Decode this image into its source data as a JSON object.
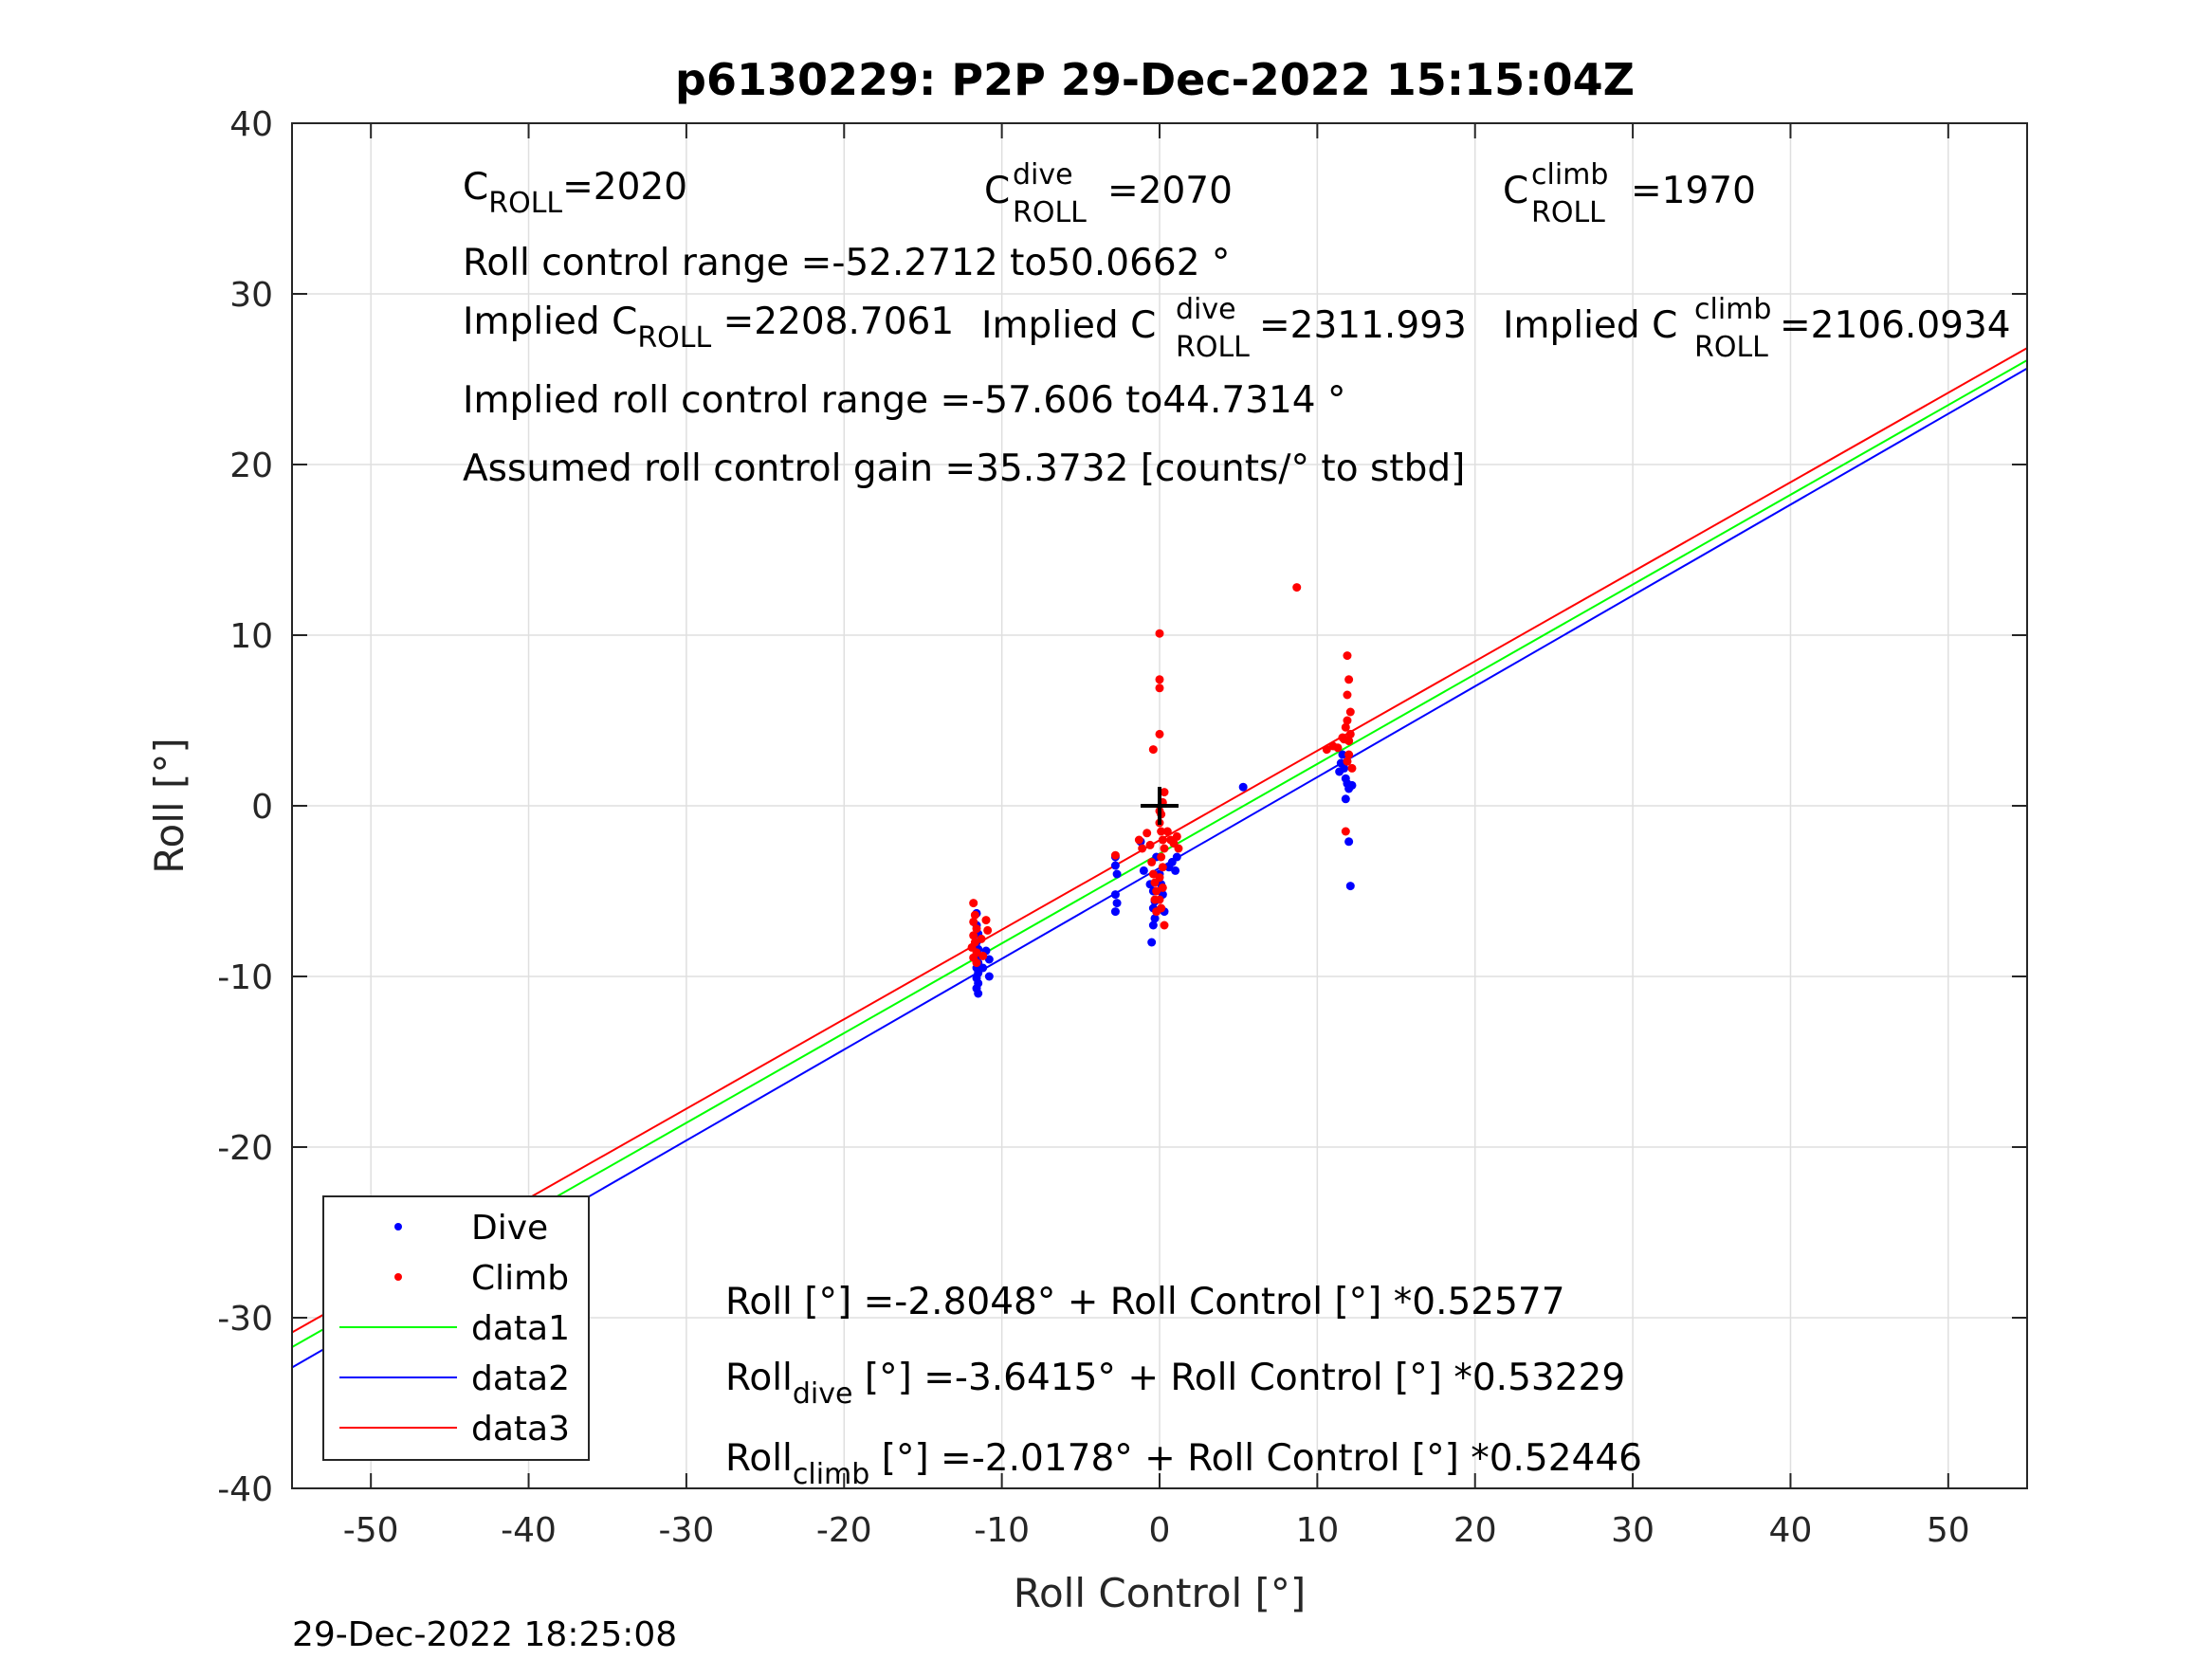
{
  "title": "p6130229: P2P 29-Dec-2022 15:15:04Z",
  "timestamp": "29-Dec-2022 18:25:08",
  "annotations": {
    "c_roll": {
      "main": "C",
      "sub": "ROLL",
      "value": "=2020"
    },
    "c_roll_dive": {
      "main": "C",
      "sup": "dive",
      "sub": "ROLL",
      "value": "=2070"
    },
    "c_roll_climb": {
      "main": "C",
      "sup": "climb",
      "sub": "ROLL",
      "value": "=1970"
    },
    "roll_control_range": "Roll control range =-52.2712 to50.0662 °",
    "implied_c_roll": {
      "prefix": "Implied C",
      "sub": "ROLL",
      "value": " =2208.7061"
    },
    "implied_c_roll_dive": {
      "prefix": "Implied C",
      "sup": "dive",
      "sub": "ROLL",
      "value": " =2311.993"
    },
    "implied_c_roll_climb": {
      "prefix": "Implied C",
      "sup": "climb",
      "sub": "ROLL",
      "value": " =2106.0934"
    },
    "implied_range": "Implied roll control range =-57.606 to44.7314 °",
    "gain": "Assumed roll control gain =35.3732 [counts/° to stbd]",
    "fit_all": "Roll [°] =-2.8048° + Roll Control [°] *0.52577",
    "fit_dive": {
      "main": "Roll",
      "sub": "dive",
      "rest": " [°] =-3.6415° + Roll Control [°] *0.53229"
    },
    "fit_climb": {
      "main": "Roll",
      "sub": "climb",
      "rest": " [°] =-2.0178° + Roll Control [°] *0.52446"
    }
  },
  "legend": {
    "placement": "bottom-left",
    "entries": [
      {
        "label": "Dive",
        "kind": "marker",
        "color": "#0000ff"
      },
      {
        "label": "Climb",
        "kind": "marker",
        "color": "#ff0000"
      },
      {
        "label": "data1",
        "kind": "line",
        "color": "#00ff00"
      },
      {
        "label": "data2",
        "kind": "line",
        "color": "#0000ff"
      },
      {
        "label": "data3",
        "kind": "line",
        "color": "#ff0000"
      }
    ]
  },
  "chart_data": {
    "type": "scatter",
    "title": "p6130229: P2P 29-Dec-2022 15:15:04Z",
    "xlabel": "Roll Control [°]",
    "ylabel": "Roll [°]",
    "xlim": [
      -55,
      55
    ],
    "ylim": [
      -40,
      40
    ],
    "xticks": [
      -50,
      -40,
      -30,
      -20,
      -10,
      0,
      10,
      20,
      30,
      40,
      50
    ],
    "yticks": [
      -40,
      -30,
      -20,
      -10,
      0,
      10,
      20,
      30,
      40
    ],
    "grid": true,
    "series": [
      {
        "name": "Dive",
        "kind": "points",
        "color": "#0000ff",
        "points": [
          [
            -11.6,
            -6.3
          ],
          [
            -11.6,
            -7.0
          ],
          [
            -11.5,
            -7.5
          ],
          [
            -11.6,
            -8.0
          ],
          [
            -11.5,
            -8.4
          ],
          [
            -11.6,
            -8.8
          ],
          [
            -11.5,
            -9.2
          ],
          [
            -11.6,
            -9.5
          ],
          [
            -11.5,
            -9.8
          ],
          [
            -11.6,
            -10.1
          ],
          [
            -11.5,
            -10.4
          ],
          [
            -11.6,
            -10.7
          ],
          [
            -11.5,
            -11.0
          ],
          [
            -11.2,
            -9.5
          ],
          [
            -11.0,
            -8.5
          ],
          [
            -10.8,
            -9.0
          ],
          [
            -10.8,
            -10.0
          ],
          [
            -2.8,
            -3.0
          ],
          [
            -2.8,
            -3.5
          ],
          [
            -2.7,
            -4.0
          ],
          [
            -2.8,
            -5.2
          ],
          [
            -2.7,
            -5.7
          ],
          [
            -2.8,
            -6.2
          ],
          [
            -1.2,
            -2.1
          ],
          [
            -1.0,
            -3.8
          ],
          [
            -0.6,
            -4.6
          ],
          [
            -0.4,
            -5.0
          ],
          [
            -0.3,
            -5.6
          ],
          [
            -0.4,
            -6.0
          ],
          [
            -0.3,
            -6.6
          ],
          [
            -0.4,
            -7.0
          ],
          [
            -0.5,
            -8.0
          ],
          [
            -0.2,
            -3.0
          ],
          [
            0.0,
            -4.0
          ],
          [
            0.1,
            -4.6
          ],
          [
            0.2,
            -5.2
          ],
          [
            0.3,
            -6.2
          ],
          [
            0.6,
            -3.6
          ],
          [
            0.8,
            -3.3
          ],
          [
            1.0,
            -3.8
          ],
          [
            1.1,
            -3.0
          ],
          [
            5.3,
            1.1
          ],
          [
            11.4,
            2.0
          ],
          [
            11.5,
            2.5
          ],
          [
            11.6,
            3.0
          ],
          [
            11.7,
            2.2
          ],
          [
            11.8,
            1.6
          ],
          [
            11.9,
            1.3
          ],
          [
            12.0,
            1.0
          ],
          [
            11.8,
            0.4
          ],
          [
            12.2,
            1.2
          ],
          [
            12.0,
            -2.1
          ],
          [
            12.1,
            -4.7
          ]
        ]
      },
      {
        "name": "Climb",
        "kind": "points",
        "color": "#ff0000",
        "points": [
          [
            -11.8,
            -5.7
          ],
          [
            -11.7,
            -6.4
          ],
          [
            -11.8,
            -6.8
          ],
          [
            -11.6,
            -7.2
          ],
          [
            -11.8,
            -7.6
          ],
          [
            -11.7,
            -8.0
          ],
          [
            -11.9,
            -8.3
          ],
          [
            -11.6,
            -8.6
          ],
          [
            -11.8,
            -8.9
          ],
          [
            -11.6,
            -9.2
          ],
          [
            -11.3,
            -7.8
          ],
          [
            -11.2,
            -8.8
          ],
          [
            -11.0,
            -6.7
          ],
          [
            -10.9,
            -7.3
          ],
          [
            -2.8,
            -2.9
          ],
          [
            -1.3,
            -2.0
          ],
          [
            -1.1,
            -2.5
          ],
          [
            -0.8,
            -1.6
          ],
          [
            -0.6,
            -2.3
          ],
          [
            -0.5,
            -3.3
          ],
          [
            -0.4,
            -4.0
          ],
          [
            -0.3,
            -4.5
          ],
          [
            -0.2,
            -5.0
          ],
          [
            -0.3,
            -5.5
          ],
          [
            -0.2,
            -6.2
          ],
          [
            -0.4,
            3.3
          ],
          [
            0.0,
            10.1
          ],
          [
            0.0,
            7.4
          ],
          [
            0.0,
            6.9
          ],
          [
            0.0,
            4.2
          ],
          [
            0.1,
            -0.5
          ],
          [
            0.0,
            -1.0
          ],
          [
            0.1,
            -1.5
          ],
          [
            0.2,
            -2.0
          ],
          [
            0.3,
            -2.5
          ],
          [
            0.1,
            -3.0
          ],
          [
            0.2,
            -3.6
          ],
          [
            0.0,
            -4.2
          ],
          [
            0.2,
            -4.8
          ],
          [
            0.0,
            -5.5
          ],
          [
            0.1,
            -6.0
          ],
          [
            0.3,
            -7.0
          ],
          [
            0.5,
            -1.5
          ],
          [
            0.7,
            -2.0
          ],
          [
            0.9,
            -2.2
          ],
          [
            1.1,
            -1.8
          ],
          [
            1.2,
            -2.5
          ],
          [
            0.3,
            0.8
          ],
          [
            0.2,
            0.2
          ],
          [
            0.0,
            -0.3
          ],
          [
            8.7,
            12.8
          ],
          [
            10.6,
            3.3
          ],
          [
            11.0,
            3.5
          ],
          [
            11.3,
            3.4
          ],
          [
            11.6,
            4.0
          ],
          [
            11.8,
            4.6
          ],
          [
            11.9,
            5.0
          ],
          [
            12.0,
            3.0
          ],
          [
            12.1,
            5.5
          ],
          [
            11.9,
            6.5
          ],
          [
            12.0,
            7.4
          ],
          [
            11.9,
            8.8
          ],
          [
            12.0,
            3.8
          ],
          [
            11.9,
            2.6
          ],
          [
            12.1,
            4.2
          ],
          [
            11.7,
            3.9
          ],
          [
            12.2,
            2.2
          ],
          [
            11.8,
            -1.5
          ]
        ]
      },
      {
        "name": "data1",
        "kind": "fit",
        "color": "#00ff00",
        "intercept": -2.8048,
        "slope": 0.52577
      },
      {
        "name": "data2",
        "kind": "fit",
        "color": "#0000ff",
        "intercept": -3.6415,
        "slope": 0.53229
      },
      {
        "name": "data3",
        "kind": "fit",
        "color": "#ff0000",
        "intercept": -2.0178,
        "slope": 0.52446
      }
    ],
    "center_marker": {
      "x": 0,
      "y": 0,
      "color": "#000000"
    }
  }
}
